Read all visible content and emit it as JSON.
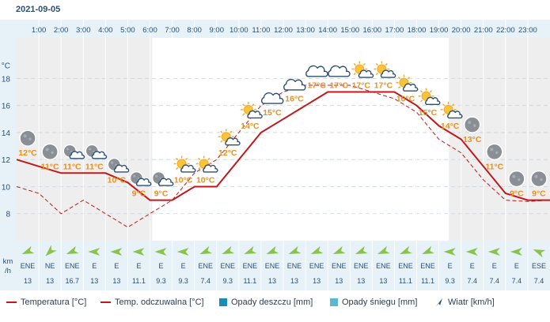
{
  "date": "2021-09-05",
  "colors": {
    "temp": "#c0181b",
    "feels": "#c0181b",
    "rain": "#1a8cb5",
    "snow": "#5ab8d0",
    "wind_arrow": "#8bc34a",
    "wind_label": "#2c4f73",
    "temp_label": "#e89020",
    "night_bg": "#eeeeee",
    "day_bg": "#ffffff"
  },
  "legend": {
    "temp": "Temperatura [°C]",
    "feels": "Temp. odczuwalna [°C]",
    "rain": "Opady deszczu [mm]",
    "snow": "Opady śniegu [mm]",
    "wind": "Wiatr [km/h]"
  },
  "chart_data": {
    "type": "line",
    "title": "2021-09-05",
    "ylabel": "°C",
    "wind_axis_label": [
      "km",
      "/h"
    ],
    "ylim": [
      6,
      21
    ],
    "yticks": [
      8,
      10,
      12,
      14,
      16,
      18
    ],
    "hours": [
      "1:00",
      "2:00",
      "3:00",
      "4:00",
      "5:00",
      "6:00",
      "7:00",
      "8:00",
      "9:00",
      "10:00",
      "11:00",
      "12:00",
      "13:00",
      "14:00",
      "15:00",
      "16:00",
      "17:00",
      "18:00",
      "19:00",
      "20:00",
      "21:00",
      "22:00",
      "23:00"
    ],
    "daylight": {
      "start": 6.1,
      "end": 19.45
    },
    "series": [
      {
        "name": "Temperatura [°C]",
        "x": [
          0,
          1,
          2,
          3,
          4,
          5,
          6,
          7,
          8,
          9,
          10,
          11,
          12,
          13,
          14,
          15,
          16,
          17,
          18,
          19,
          20,
          21,
          22,
          23,
          24
        ],
        "values": [
          12,
          11.5,
          11,
          11,
          11,
          10.3,
          9,
          9,
          10,
          10,
          12,
          14,
          15,
          16,
          17,
          17,
          17,
          17,
          16,
          14.5,
          13.5,
          11.5,
          9.5,
          9,
          9
        ]
      },
      {
        "name": "Temp. odczuwalna [°C]",
        "x": [
          0,
          1,
          2,
          3,
          4,
          5,
          6,
          7,
          8,
          9,
          10,
          11,
          12,
          13,
          14,
          15,
          16,
          17,
          18,
          19,
          20,
          21,
          22,
          23,
          24
        ],
        "values": [
          10,
          9.5,
          8,
          9,
          8,
          7,
          8,
          9,
          11,
          12,
          14,
          16,
          17,
          17.5,
          17.5,
          17.5,
          17,
          16.5,
          15.5,
          13.5,
          12.5,
          10.5,
          9,
          8.9,
          9
        ]
      }
    ],
    "temp_labels": [
      {
        "h": 0.5,
        "v": 12,
        "text": "12°C",
        "icon": "moon"
      },
      {
        "h": 1.5,
        "v": 11,
        "text": "11°C",
        "icon": "moon"
      },
      {
        "h": 2.5,
        "v": 11,
        "text": "11°C",
        "icon": "moon-cloud"
      },
      {
        "h": 3.5,
        "v": 11,
        "text": "11°C",
        "icon": "moon-cloud"
      },
      {
        "h": 4.5,
        "v": 10,
        "text": "10°C",
        "icon": "moon-cloud"
      },
      {
        "h": 5.5,
        "v": 9,
        "text": "9°C",
        "icon": "moon-cloud"
      },
      {
        "h": 6.5,
        "v": 9,
        "text": "9°C",
        "icon": "moon-cloud"
      },
      {
        "h": 7.5,
        "v": 10,
        "text": "10°C",
        "icon": "sun-cloud"
      },
      {
        "h": 8.5,
        "v": 10,
        "text": "10°C",
        "icon": "sun-cloud"
      },
      {
        "h": 9.5,
        "v": 12,
        "text": "12°C",
        "icon": "sun-cloud"
      },
      {
        "h": 10.5,
        "v": 14,
        "text": "14°C",
        "icon": "sun-cloud"
      },
      {
        "h": 11.5,
        "v": 15,
        "text": "15°C",
        "icon": "cloud"
      },
      {
        "h": 12.5,
        "v": 16,
        "text": "16°C",
        "icon": "cloud"
      },
      {
        "h": 13.5,
        "v": 17,
        "text": "17°C",
        "icon": "cloud"
      },
      {
        "h": 14.5,
        "v": 17,
        "text": "17°C",
        "icon": "cloud"
      },
      {
        "h": 15.5,
        "v": 17,
        "text": "17°C",
        "icon": "sun-cloud"
      },
      {
        "h": 16.5,
        "v": 17,
        "text": "17°C",
        "icon": "sun-cloud"
      },
      {
        "h": 17.5,
        "v": 16,
        "text": "16°C",
        "icon": "sun-cloud"
      },
      {
        "h": 18.5,
        "v": 15,
        "text": "15°C",
        "icon": "sun-cloud"
      },
      {
        "h": 19.5,
        "v": 14,
        "text": "14°C",
        "icon": "sun-cloud"
      },
      {
        "h": 20.5,
        "v": 13,
        "text": "13°C",
        "icon": "moon"
      },
      {
        "h": 21.5,
        "v": 11,
        "text": "11°C",
        "icon": "moon"
      },
      {
        "h": 22.5,
        "v": 9,
        "text": "9°C",
        "icon": "moon"
      },
      {
        "h": 23.5,
        "v": 9,
        "text": "9°C",
        "icon": "moon"
      }
    ],
    "wind": [
      {
        "h": 0.5,
        "dir": "ENE",
        "speed": "13",
        "deg": 67.5
      },
      {
        "h": 1.5,
        "dir": "NE",
        "speed": "13",
        "deg": 45
      },
      {
        "h": 2.5,
        "dir": "ENE",
        "speed": "16.7",
        "deg": 67.5
      },
      {
        "h": 3.5,
        "dir": "E",
        "speed": "13",
        "deg": 90
      },
      {
        "h": 4.5,
        "dir": "E",
        "speed": "13",
        "deg": 90
      },
      {
        "h": 5.5,
        "dir": "E",
        "speed": "11.1",
        "deg": 90
      },
      {
        "h": 6.5,
        "dir": "E",
        "speed": "9.3",
        "deg": 90
      },
      {
        "h": 7.5,
        "dir": "E",
        "speed": "9.3",
        "deg": 90
      },
      {
        "h": 8.5,
        "dir": "ENE",
        "speed": "7.4",
        "deg": 67.5
      },
      {
        "h": 9.5,
        "dir": "ENE",
        "speed": "9.3",
        "deg": 67.5
      },
      {
        "h": 10.5,
        "dir": "ENE",
        "speed": "11.1",
        "deg": 67.5
      },
      {
        "h": 11.5,
        "dir": "ENE",
        "speed": "13",
        "deg": 67.5
      },
      {
        "h": 12.5,
        "dir": "ENE",
        "speed": "13",
        "deg": 67.5
      },
      {
        "h": 13.5,
        "dir": "ENE",
        "speed": "13",
        "deg": 67.5
      },
      {
        "h": 14.5,
        "dir": "ENE",
        "speed": "13",
        "deg": 67.5
      },
      {
        "h": 15.5,
        "dir": "ENE",
        "speed": "13",
        "deg": 67.5
      },
      {
        "h": 16.5,
        "dir": "ENE",
        "speed": "13",
        "deg": 67.5
      },
      {
        "h": 17.5,
        "dir": "ENE",
        "speed": "11.1",
        "deg": 67.5
      },
      {
        "h": 18.5,
        "dir": "ENE",
        "speed": "11.1",
        "deg": 67.5
      },
      {
        "h": 19.5,
        "dir": "E",
        "speed": "9.3",
        "deg": 90
      },
      {
        "h": 20.5,
        "dir": "E",
        "speed": "7.4",
        "deg": 90
      },
      {
        "h": 21.5,
        "dir": "E",
        "speed": "7.4",
        "deg": 90
      },
      {
        "h": 22.5,
        "dir": "E",
        "speed": "7.4",
        "deg": 90
      },
      {
        "h": 23.5,
        "dir": "ESE",
        "speed": "7.4",
        "deg": 112.5
      }
    ]
  }
}
